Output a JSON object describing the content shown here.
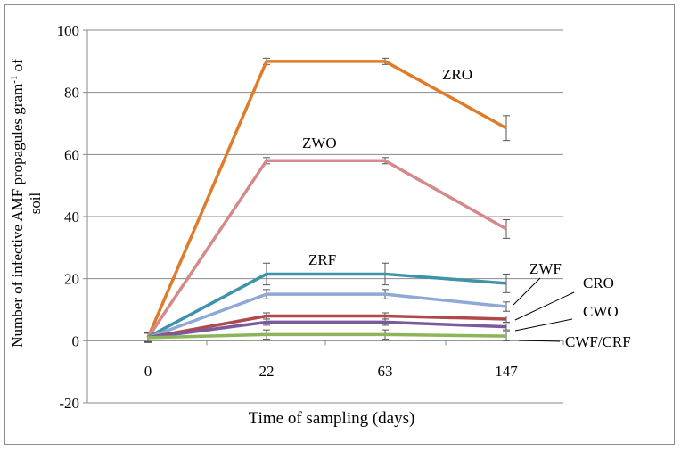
{
  "chart_data": {
    "type": "line",
    "title": "",
    "xlabel": "Time of sampling (days)",
    "ylabel_main": "Number of infective AMF propagules gram",
    "ylabel_sup": "-1",
    "ylabel_tail": " of",
    "ylabel_line2": "soil",
    "categories": [
      "0",
      "22",
      "63",
      "147"
    ],
    "ylim": [
      -20,
      100
    ],
    "yticks": [
      -20,
      0,
      20,
      40,
      60,
      80,
      100
    ],
    "grid": true,
    "series": [
      {
        "name": "ZRO",
        "color": "#e07b2a",
        "values": [
          1,
          90,
          90,
          68.5
        ],
        "errors": [
          1.5,
          1,
          1,
          4
        ]
      },
      {
        "name": "ZWO",
        "color": "#d48a8c",
        "values": [
          1,
          58,
          58,
          36
        ],
        "errors": [
          1.5,
          1,
          1,
          3
        ]
      },
      {
        "name": "ZRF",
        "color": "#3d94a8",
        "values": [
          1.2,
          21.5,
          21.5,
          18.5
        ],
        "errors": [
          1.5,
          3.5,
          3.5,
          3
        ]
      },
      {
        "name": "ZWF",
        "color": "#8fa8d4",
        "values": [
          1,
          15,
          15,
          11
        ],
        "errors": [
          1.5,
          1.5,
          1.5,
          1.5
        ]
      },
      {
        "name": "CRO",
        "color": "#b04a4a",
        "values": [
          1,
          8,
          8,
          7
        ],
        "errors": [
          1.5,
          1,
          1,
          1
        ]
      },
      {
        "name": "CWO",
        "color": "#7a5a9c",
        "values": [
          1,
          6,
          6,
          4.5
        ],
        "errors": [
          1.5,
          1,
          1,
          1
        ]
      },
      {
        "name": "CWF/CRF",
        "color": "#8cb55a",
        "values": [
          1,
          2,
          2,
          1.5
        ],
        "errors": [
          1.5,
          1.5,
          1.5,
          1.5
        ]
      }
    ]
  }
}
